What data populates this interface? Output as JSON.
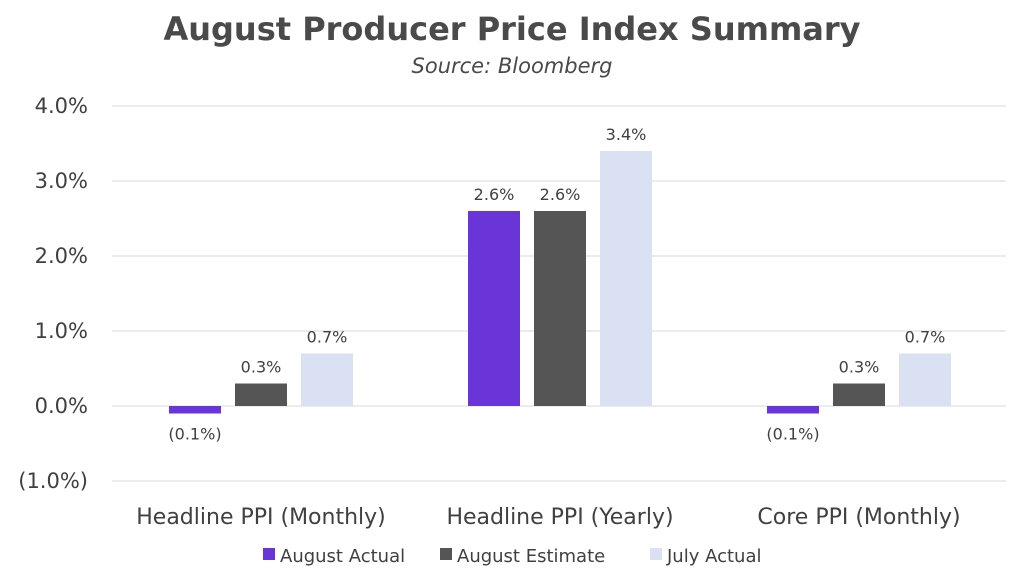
{
  "chart_data": {
    "type": "bar",
    "title": "August Producer Price Index Summary",
    "subtitle": "Source: Bloomberg",
    "categories": [
      "Headline PPI (Monthly)",
      "Headline PPI (Yearly)",
      "Core PPI (Monthly)"
    ],
    "series": [
      {
        "name": "August Actual",
        "color": "#6a35d8",
        "values": [
          -0.1,
          2.6,
          -0.1
        ],
        "labels": [
          "(0.1%)",
          "2.6%",
          "(0.1%)"
        ]
      },
      {
        "name": "August Estimate",
        "color": "#555555",
        "values": [
          0.3,
          2.6,
          0.3
        ],
        "labels": [
          "0.3%",
          "2.6%",
          "0.3%"
        ]
      },
      {
        "name": "July Actual",
        "color": "#d9e1f2",
        "values": [
          0.7,
          3.4,
          0.7
        ],
        "labels": [
          "0.7%",
          "3.4%",
          "0.7%"
        ]
      }
    ],
    "yticks": [
      4.0,
      3.0,
      2.0,
      1.0,
      0.0,
      -1.0
    ],
    "ytick_labels": [
      "4.0%",
      "3.0%",
      "2.0%",
      "1.0%",
      "0.0%",
      "(1.0%)"
    ],
    "ylim": [
      -1.0,
      4.0
    ],
    "grid": true,
    "legend": "bottom-center"
  }
}
